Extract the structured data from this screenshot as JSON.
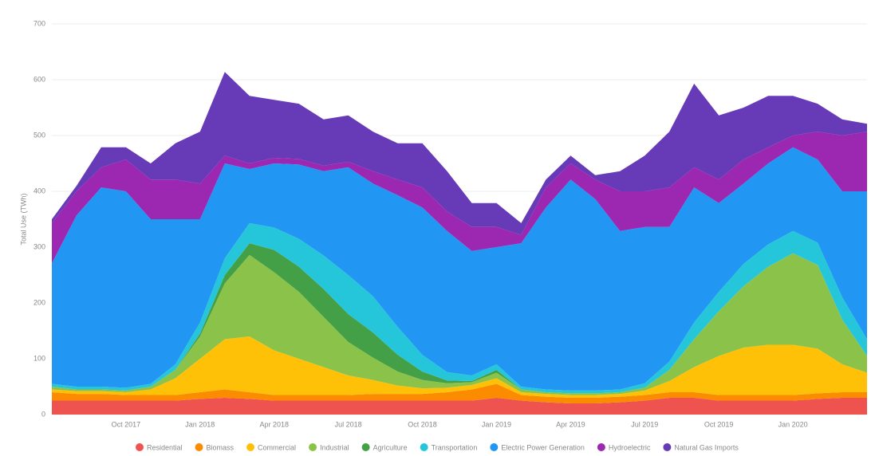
{
  "chart_data": {
    "type": "stacked_area",
    "y_label": "Total Use (TWh)",
    "categories": [
      null,
      null,
      null,
      "Oct 2017",
      null,
      null,
      "Jan 2018",
      null,
      null,
      "Apr 2018",
      null,
      null,
      "Jul 2018",
      null,
      null,
      "Oct 2018",
      null,
      null,
      "Jan 2019",
      null,
      null,
      "Apr 2019",
      null,
      null,
      "Jul 2019",
      null,
      null,
      "Oct 2019",
      null,
      null,
      "Jan 2020",
      null,
      null,
      null
    ],
    "ylim": [
      0,
      700
    ],
    "yticks": [
      0,
      100,
      200,
      300,
      400,
      500,
      600,
      700
    ],
    "grid": true,
    "series": [
      {
        "name": "Residential",
        "color": "#ef5350",
        "values": [
          25,
          25,
          25,
          25,
          25,
          25,
          28,
          30,
          28,
          25,
          25,
          25,
          25,
          25,
          25,
          25,
          25,
          25,
          30,
          25,
          22,
          20,
          20,
          22,
          25,
          30,
          30,
          25,
          25,
          25,
          25,
          28,
          30,
          30
        ]
      },
      {
        "name": "Biomass",
        "color": "#fb8c00",
        "values": [
          15,
          12,
          12,
          10,
          10,
          10,
          12,
          15,
          12,
          10,
          10,
          10,
          10,
          12,
          12,
          12,
          15,
          20,
          25,
          10,
          10,
          10,
          10,
          10,
          10,
          10,
          10,
          10,
          10,
          10,
          10,
          10,
          10,
          10
        ]
      },
      {
        "name": "Commercial",
        "color": "#ffc107",
        "values": [
          5,
          5,
          5,
          5,
          10,
          30,
          60,
          90,
          100,
          80,
          65,
          50,
          35,
          25,
          15,
          10,
          8,
          8,
          10,
          5,
          5,
          5,
          5,
          5,
          8,
          20,
          45,
          70,
          85,
          90,
          90,
          80,
          50,
          35
        ]
      },
      {
        "name": "Industrial",
        "color": "#8bc34a",
        "values": [
          5,
          3,
          3,
          3,
          5,
          15,
          40,
          100,
          146,
          140,
          120,
          90,
          60,
          40,
          25,
          15,
          8,
          5,
          10,
          5,
          3,
          3,
          3,
          3,
          5,
          20,
          50,
          80,
          110,
          140,
          164,
          150,
          80,
          30
        ]
      },
      {
        "name": "Agriculture",
        "color": "#43a047",
        "values": [
          0,
          0,
          0,
          0,
          0,
          0,
          5,
          15,
          21,
          40,
          45,
          50,
          50,
          45,
          30,
          15,
          5,
          2,
          5,
          0,
          0,
          0,
          0,
          0,
          0,
          0,
          0,
          0,
          0,
          0,
          0,
          0,
          0,
          0
        ]
      },
      {
        "name": "Transportation",
        "color": "#26c6da",
        "values": [
          5,
          5,
          5,
          5,
          5,
          10,
          20,
          30,
          36,
          40,
          50,
          60,
          70,
          65,
          50,
          30,
          15,
          10,
          10,
          5,
          5,
          5,
          5,
          5,
          8,
          15,
          30,
          35,
          40,
          40,
          40,
          40,
          40,
          30
        ]
      },
      {
        "name": "Electric Power Generation",
        "color": "#2196f3",
        "values": [
          216,
          307,
          357,
          352,
          295,
          260,
          185,
          170,
          97,
          115,
          133,
          151,
          193,
          202,
          236,
          264,
          253,
          223,
          210,
          257,
          326,
          378,
          343,
          284,
          280,
          241,
          242,
          159,
          144,
          145,
          150,
          149,
          190,
          265
        ]
      },
      {
        "name": "Hydroelectric",
        "color": "#9c27b0",
        "values": [
          72,
          43,
          36,
          57,
          71,
          71,
          64,
          14,
          10,
          10,
          10,
          10,
          10,
          22,
          28,
          36,
          35,
          43,
          36,
          15,
          36,
          29,
          35,
          71,
          64,
          71,
          36,
          42,
          43,
          29,
          21,
          50,
          100,
          107
        ]
      },
      {
        "name": "Natural Gas Imports",
        "color": "#673ab7",
        "values": [
          7,
          10,
          36,
          22,
          29,
          65,
          93,
          150,
          121,
          104,
          99,
          83,
          83,
          71,
          65,
          79,
          72,
          43,
          43,
          21,
          14,
          14,
          8,
          36,
          64,
          100,
          150,
          115,
          93,
          92,
          71,
          50,
          29,
          14
        ]
      }
    ]
  }
}
